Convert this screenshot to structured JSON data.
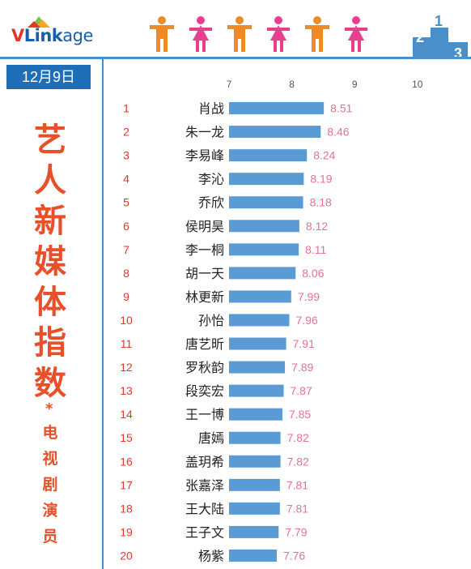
{
  "header": {
    "logo_text_red": "V",
    "logo_text_blue": "Link",
    "logo_text_tail": "age",
    "people_colors": [
      "#f08a24",
      "#e83e8c",
      "#f08a24",
      "#e83e8c",
      "#f08a24",
      "#e83e8c"
    ],
    "podium_labels": [
      "2",
      "1",
      "3"
    ],
    "accent": "#4a8fc9"
  },
  "sidebar": {
    "date": "12月9日",
    "title_chars": [
      "艺",
      "人",
      "新",
      "媒",
      "体",
      "指",
      "数"
    ],
    "star": "*",
    "subtitle_chars": [
      "电",
      "视",
      "剧",
      "演",
      "员"
    ]
  },
  "chart_data": {
    "type": "bar",
    "orientation": "horizontal",
    "axis_ticks": [
      7,
      8,
      9,
      10
    ],
    "xlim": [
      7,
      10
    ],
    "grid": false,
    "bar_color": "#5b9bd5",
    "label_color": "#e8718d",
    "rank_color": "#e0392b",
    "ranks": [
      1,
      2,
      3,
      4,
      5,
      6,
      7,
      8,
      9,
      10,
      11,
      12,
      13,
      14,
      15,
      16,
      17,
      18,
      19,
      20
    ],
    "categories": [
      "肖战",
      "朱一龙",
      "李易峰",
      "李沁",
      "乔欣",
      "侯明昊",
      "李一桐",
      "胡一天",
      "林更新",
      "孙怡",
      "唐艺昕",
      "罗秋韵",
      "段奕宏",
      "王一博",
      "唐嫣",
      "盖玥希",
      "张嘉泽",
      "王大陆",
      "王子文",
      "杨紫"
    ],
    "values": [
      8.51,
      8.46,
      8.24,
      8.19,
      8.18,
      8.12,
      8.11,
      8.06,
      7.99,
      7.96,
      7.91,
      7.89,
      7.87,
      7.85,
      7.82,
      7.82,
      7.81,
      7.81,
      7.79,
      7.76
    ]
  }
}
